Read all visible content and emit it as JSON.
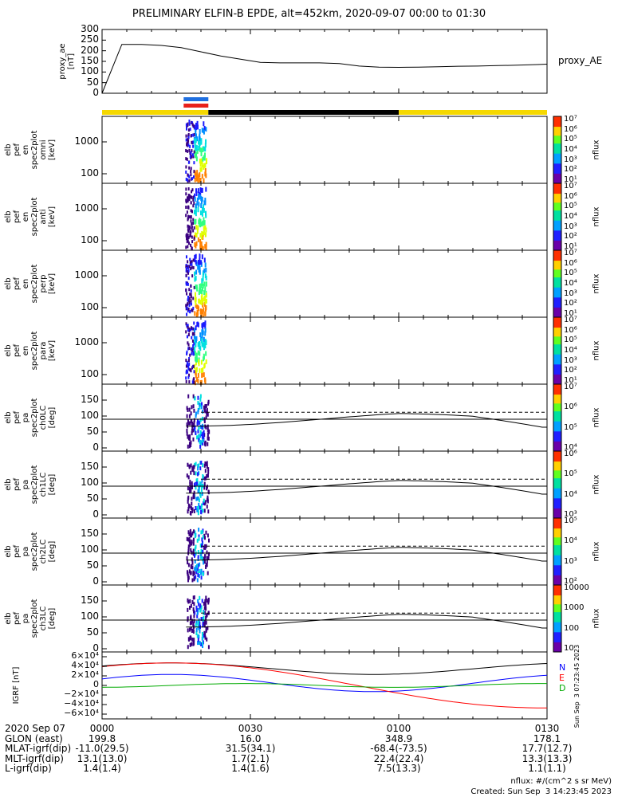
{
  "title": "PRELIMINARY ELFIN-B EPDE, alt=452km, 2020-09-07 00:00 to 01:30",
  "proxy_ae": {
    "ylabel": "proxy_ae [nT]",
    "legend": "proxy_AE",
    "yticks": [
      "300",
      "250",
      "200",
      "150",
      "100",
      "50",
      "0"
    ]
  },
  "spec_panels": [
    {
      "label": [
        "elb",
        "pef",
        "en",
        "spec2plot",
        "omni",
        "[keV]"
      ],
      "yticks": [
        "1000",
        "100"
      ]
    },
    {
      "label": [
        "elb",
        "pef",
        "en",
        "spec2plot",
        "anti",
        "[keV]"
      ],
      "yticks": [
        "1000",
        "100"
      ]
    },
    {
      "label": [
        "elb",
        "pef",
        "en",
        "spec2plot",
        "perp",
        "[keV]"
      ],
      "yticks": [
        "1000",
        "100"
      ]
    },
    {
      "label": [
        "elb",
        "pef",
        "en",
        "spec2plot",
        "para",
        "[keV]"
      ],
      "yticks": [
        "1000",
        "100"
      ]
    }
  ],
  "pa_panels": [
    {
      "label": [
        "elb",
        "pef",
        "pa",
        "spec2plot",
        "ch0LC",
        "[deg]"
      ],
      "yticks": [
        "150",
        "100",
        "50",
        "0"
      ]
    },
    {
      "label": [
        "elb",
        "pef",
        "pa",
        "spec2plot",
        "ch1LC",
        "[deg]"
      ],
      "yticks": [
        "150",
        "100",
        "50",
        "0"
      ]
    },
    {
      "label": [
        "elb",
        "pef",
        "pa",
        "spec2plot",
        "ch2LC",
        "[deg]"
      ],
      "yticks": [
        "150",
        "100",
        "50",
        "0"
      ]
    },
    {
      "label": [
        "elb",
        "pef",
        "pa",
        "spec2plot",
        "ch3LC",
        "[deg]"
      ],
      "yticks": [
        "150",
        "100",
        "50",
        "0"
      ]
    }
  ],
  "colorbars": [
    {
      "label": "nflux",
      "ticks": [
        "10⁷",
        "10⁶",
        "10⁵",
        "10⁴",
        "10³",
        "10²",
        "10¹"
      ]
    },
    {
      "label": "nflux",
      "ticks": [
        "10⁷",
        "10⁶",
        "10⁵",
        "10⁴",
        "10³",
        "10²",
        "10¹"
      ]
    },
    {
      "label": "nflux",
      "ticks": [
        "10⁷",
        "10⁶",
        "10⁵",
        "10⁴",
        "10³",
        "10²",
        "10¹"
      ]
    },
    {
      "label": "nflux",
      "ticks": [
        "10⁷",
        "10⁶",
        "10⁵",
        "10⁴",
        "10³",
        "10²",
        "10¹"
      ]
    },
    {
      "label": "nflux",
      "ticks": [
        "10⁷",
        "10⁶",
        "10⁵",
        "10⁴"
      ]
    },
    {
      "label": "nflux",
      "ticks": [
        "10⁶",
        "10⁵",
        "10⁴",
        "10³"
      ]
    },
    {
      "label": "nflux",
      "ticks": [
        "10⁵",
        "10⁴",
        "10³",
        "10²"
      ]
    },
    {
      "label": "nflux",
      "ticks": [
        "10000",
        "1000",
        "100",
        "10"
      ]
    }
  ],
  "igrf": {
    "ylabel": "IGRF [nT]",
    "yticks": [
      "6×10⁴",
      "4×10⁴",
      "2×10⁴",
      "0",
      "−2×10⁴",
      "−4×10⁴",
      "−6×10⁴"
    ],
    "legend": [
      {
        "name": "N",
        "color": "#0000ff"
      },
      {
        "name": "E",
        "color": "#ff0000"
      },
      {
        "name": "D",
        "color": "#00aa00"
      }
    ],
    "side_note": "Sun Sep  3 07:23:45 2023"
  },
  "colors": {
    "status_yellow": "#f5d800",
    "status_black": "#000000",
    "bar_blue": "#1f6fe0",
    "bar_red": "#e8201a",
    "n": "#0000ff",
    "e": "#ff0000",
    "d": "#00aa00",
    "total": "#000000"
  },
  "axis": {
    "rows": [
      {
        "label": "2020 Sep 07",
        "values": [
          "0000",
          "0030",
          "0100",
          "0130"
        ]
      },
      {
        "label": "GLON (east)",
        "values": [
          "199.8",
          "16.0",
          "348.9",
          "178.1"
        ]
      },
      {
        "label": "MLAT-igrf(dip)",
        "values": [
          "-11.0(29.5)",
          "31.5(34.1)",
          "-68.4(-73.5)",
          "17.7(12.7)"
        ]
      },
      {
        "label": "MLT-igrf(dip)",
        "values": [
          "13.1(13.0)",
          "1.7(2.1)",
          "22.4(22.4)",
          "13.3(13.3)"
        ]
      },
      {
        "label": "L-igrf(dip)",
        "values": [
          "1.4(1.4)",
          "1.4(1.6)",
          "7.5(13.3)",
          "1.1(1.1)"
        ]
      }
    ]
  },
  "footer": {
    "units": "nflux: #/(cm^2 s sr MeV)",
    "created": "Created: Sun Sep  3 14:23:45 2023"
  },
  "chart_data": {
    "type": "line",
    "title": "PRELIMINARY ELFIN-B EPDE, alt=452km, 2020-09-07 00:00 to 01:30",
    "x": [
      0,
      4,
      8,
      12,
      16,
      20,
      24,
      28,
      32,
      36,
      40,
      44,
      48,
      52,
      56,
      60,
      64,
      68,
      72,
      76,
      80,
      84,
      88,
      90
    ],
    "xunits": "minutes since 2020-09-07 00:00",
    "xticks": [
      "0000",
      "0030",
      "0100",
      "0130"
    ],
    "series": [
      {
        "name": "proxy_AE",
        "values": [
          0,
          230,
          230,
          225,
          215,
          195,
          175,
          160,
          145,
          143,
          143,
          143,
          140,
          128,
          123,
          122,
          123,
          125,
          127,
          128,
          130,
          132,
          135,
          137
        ]
      }
    ],
    "ylabel": "proxy_ae [nT]",
    "ylim": [
      0,
      300
    ],
    "active_window_min": [
      16.5,
      21.5
    ]
  }
}
